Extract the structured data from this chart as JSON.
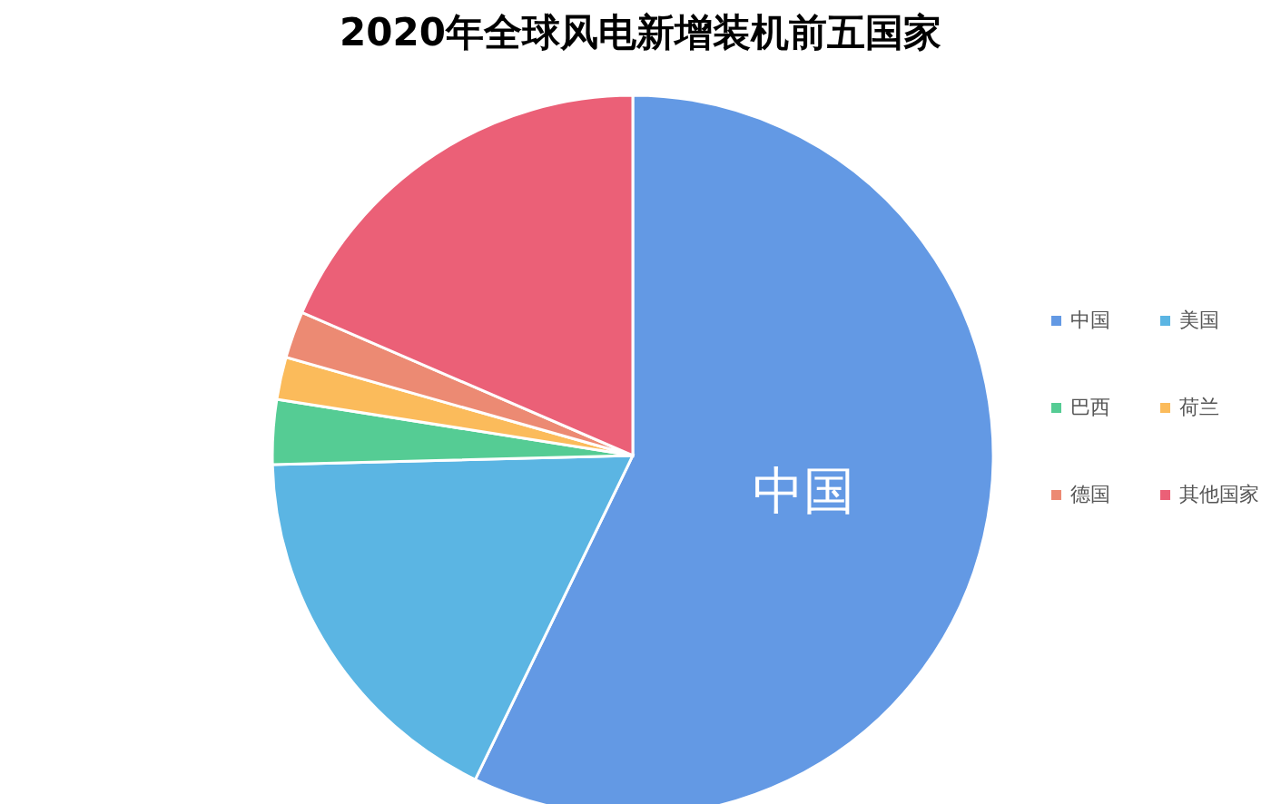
{
  "chart_data": {
    "type": "pie",
    "title": "2020年全球风电新增装机前五国家",
    "categories": [
      "中国",
      "美国",
      "巴西",
      "荷兰",
      "德国",
      "其他国家"
    ],
    "values": [
      57.2,
      17.4,
      2.9,
      1.9,
      2.1,
      18.5
    ],
    "colors": [
      "#6399e4",
      "#5bb5e3",
      "#55cc94",
      "#fbbb5b",
      "#ec8a73",
      "#eb6077"
    ],
    "annotations": [
      {
        "text": "中国",
        "x": "中国"
      }
    ],
    "legend": "right"
  }
}
